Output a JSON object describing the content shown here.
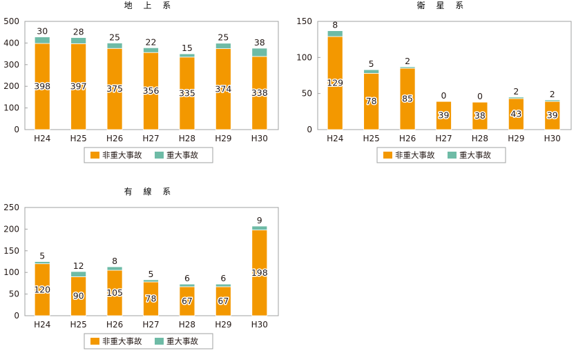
{
  "chart_data": [
    {
      "type": "bar",
      "stacked": true,
      "title": "地 上 系",
      "categories": [
        "H24",
        "H25",
        "H26",
        "H27",
        "H28",
        "H29",
        "H30"
      ],
      "series": [
        {
          "name": "非重大事故",
          "values": [
            398,
            397,
            375,
            356,
            335,
            374,
            338
          ]
        },
        {
          "name": "重大事故",
          "values": [
            30,
            28,
            25,
            22,
            15,
            25,
            38
          ]
        }
      ],
      "ylim": [
        0,
        500
      ],
      "yticks": [
        0,
        100,
        200,
        300,
        400,
        500
      ],
      "legend": "bottom",
      "grid": false
    },
    {
      "type": "bar",
      "stacked": true,
      "title": "衛 星 系",
      "categories": [
        "H24",
        "H25",
        "H26",
        "H27",
        "H28",
        "H29",
        "H30"
      ],
      "series": [
        {
          "name": "非重大事故",
          "values": [
            129,
            78,
            85,
            39,
            38,
            43,
            39
          ]
        },
        {
          "name": "重大事故",
          "values": [
            8,
            5,
            2,
            0,
            0,
            2,
            2
          ]
        }
      ],
      "ylim": [
        0,
        150
      ],
      "yticks": [
        0,
        50,
        100,
        150
      ],
      "legend": "bottom",
      "grid": false
    },
    {
      "type": "bar",
      "stacked": true,
      "title": "有 線 系",
      "categories": [
        "H24",
        "H25",
        "H26",
        "H27",
        "H28",
        "H29",
        "H30"
      ],
      "series": [
        {
          "name": "非重大事故",
          "values": [
            120,
            90,
            105,
            78,
            67,
            67,
            198
          ]
        },
        {
          "name": "重大事故",
          "values": [
            5,
            12,
            8,
            5,
            6,
            6,
            9
          ]
        }
      ],
      "ylim": [
        0,
        250
      ],
      "yticks": [
        0,
        50,
        100,
        150,
        200,
        250
      ],
      "legend": "bottom",
      "grid": false
    }
  ],
  "colors": {
    "non_major": "#f39800",
    "major": "#6ebba6",
    "axis": "#9fa0a0",
    "text": "#231815"
  }
}
